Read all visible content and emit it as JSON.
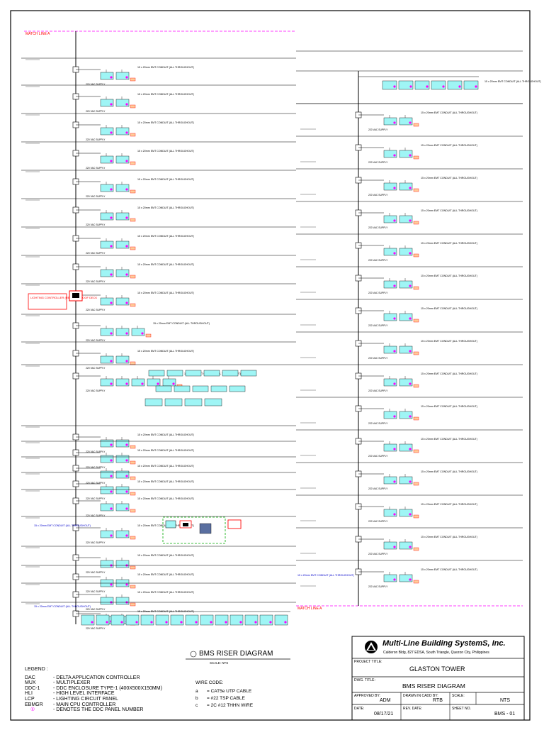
{
  "match_line_label": "MATCH LINE A",
  "conduit_note": "15 x 20mm EMT CONDUIT (ALL THROUGHOUT)",
  "supply_note": "220 VAC SUPPLY",
  "panel_tag": "DDC",
  "controller_note": "LIGHTING CONTROLLER (REF.) FOR ROOF DECK",
  "title": "BMS RISER DIAGRAM",
  "scale_note": "SCALE: NTS",
  "legend": {
    "heading": "LEGEND :",
    "items": [
      {
        "abbr": "DAC",
        "desc": "- DELTA APPLICATION CONTROLLER"
      },
      {
        "abbr": "MUX",
        "desc": "- MULTIPLEXER"
      },
      {
        "abbr": "DDC-1",
        "desc": "- DDC ENCLOSURE TYPE-1 (400X500X150MM)"
      },
      {
        "abbr": "HLI",
        "desc": "- HIGH LEVEL INTERFACE"
      },
      {
        "abbr": "LCP",
        "desc": "- LIGHTING CIRCUIT PANEL"
      },
      {
        "abbr": "EBMGR",
        "desc": "- MAIN CPU CONTROLLER"
      },
      {
        "abbr": "①",
        "desc": "- DENOTES THE DDC PANEL NUMBER"
      }
    ]
  },
  "wire_code": {
    "heading": "WIRE CODE:",
    "items": [
      {
        "code": "a",
        "desc": "=   CAT5e UTP CABLE"
      },
      {
        "code": "b",
        "desc": "=   #22 TSP CABLE"
      },
      {
        "code": "c",
        "desc": "=   2C #12 THHN WIRE"
      }
    ]
  },
  "title_block": {
    "company": "Multi-Line Building SystemS, Inc.",
    "address": "Calderon Bldg, 827 EDSA, South Triangle, Quezon City, Philippines",
    "project_title_label": "PROJECT TITLE:",
    "project_title": "GLASTON TOWER",
    "dwg_title_label": "DWG. TITLE:",
    "dwg_title": "BMS RISER DIAGRAM",
    "approved_by_label": "APPROVED BY:",
    "approved_by": "ADM",
    "drawn_by_label": "DRAWN IN CADD BY:",
    "drawn_by": "RTB",
    "scale_label": "SCALE:",
    "scale": "NTS",
    "date_label": "DATE:",
    "date": "08/17/21",
    "rev_date_label": "REV. DATE:",
    "rev_date": "",
    "sheet_no_label": "SHEET NO.",
    "sheet_no": "BMS - 01"
  },
  "colors": {
    "panel": "#9ff5f5",
    "match_line": "#ff00ff",
    "note_red": "#ff0000",
    "note_blue": "#0000cc",
    "group_green": "#00aa00"
  }
}
